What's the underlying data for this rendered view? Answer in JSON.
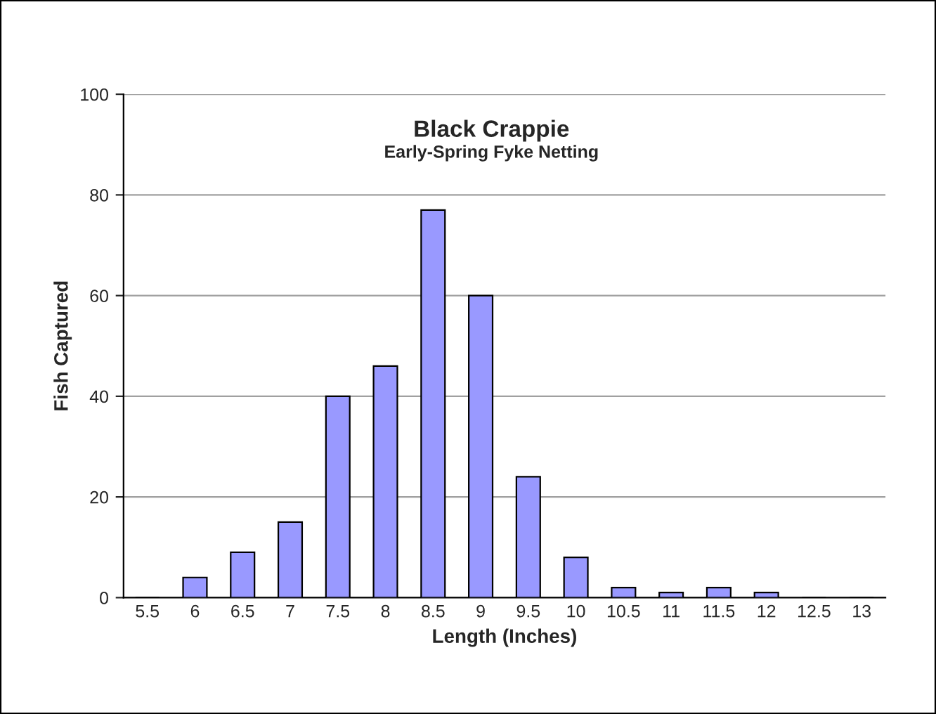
{
  "chart_data": {
    "type": "bar",
    "title": "Black Crappie",
    "subtitle": "Early-Spring Fyke Netting",
    "xlabel": "Length (Inches)",
    "ylabel": "Fish Captured",
    "categories": [
      "5.5",
      "6",
      "6.5",
      "7",
      "7.5",
      "8",
      "8.5",
      "9",
      "9.5",
      "10",
      "10.5",
      "11",
      "11.5",
      "12",
      "12.5",
      "13"
    ],
    "values": [
      0,
      4,
      9,
      15,
      40,
      46,
      77,
      60,
      24,
      8,
      2,
      1,
      2,
      1,
      0,
      0
    ],
    "color": "#9999ff",
    "ylim": [
      0,
      100
    ],
    "yticks": [
      0,
      20,
      40,
      60,
      80,
      100
    ],
    "grid": "y"
  }
}
